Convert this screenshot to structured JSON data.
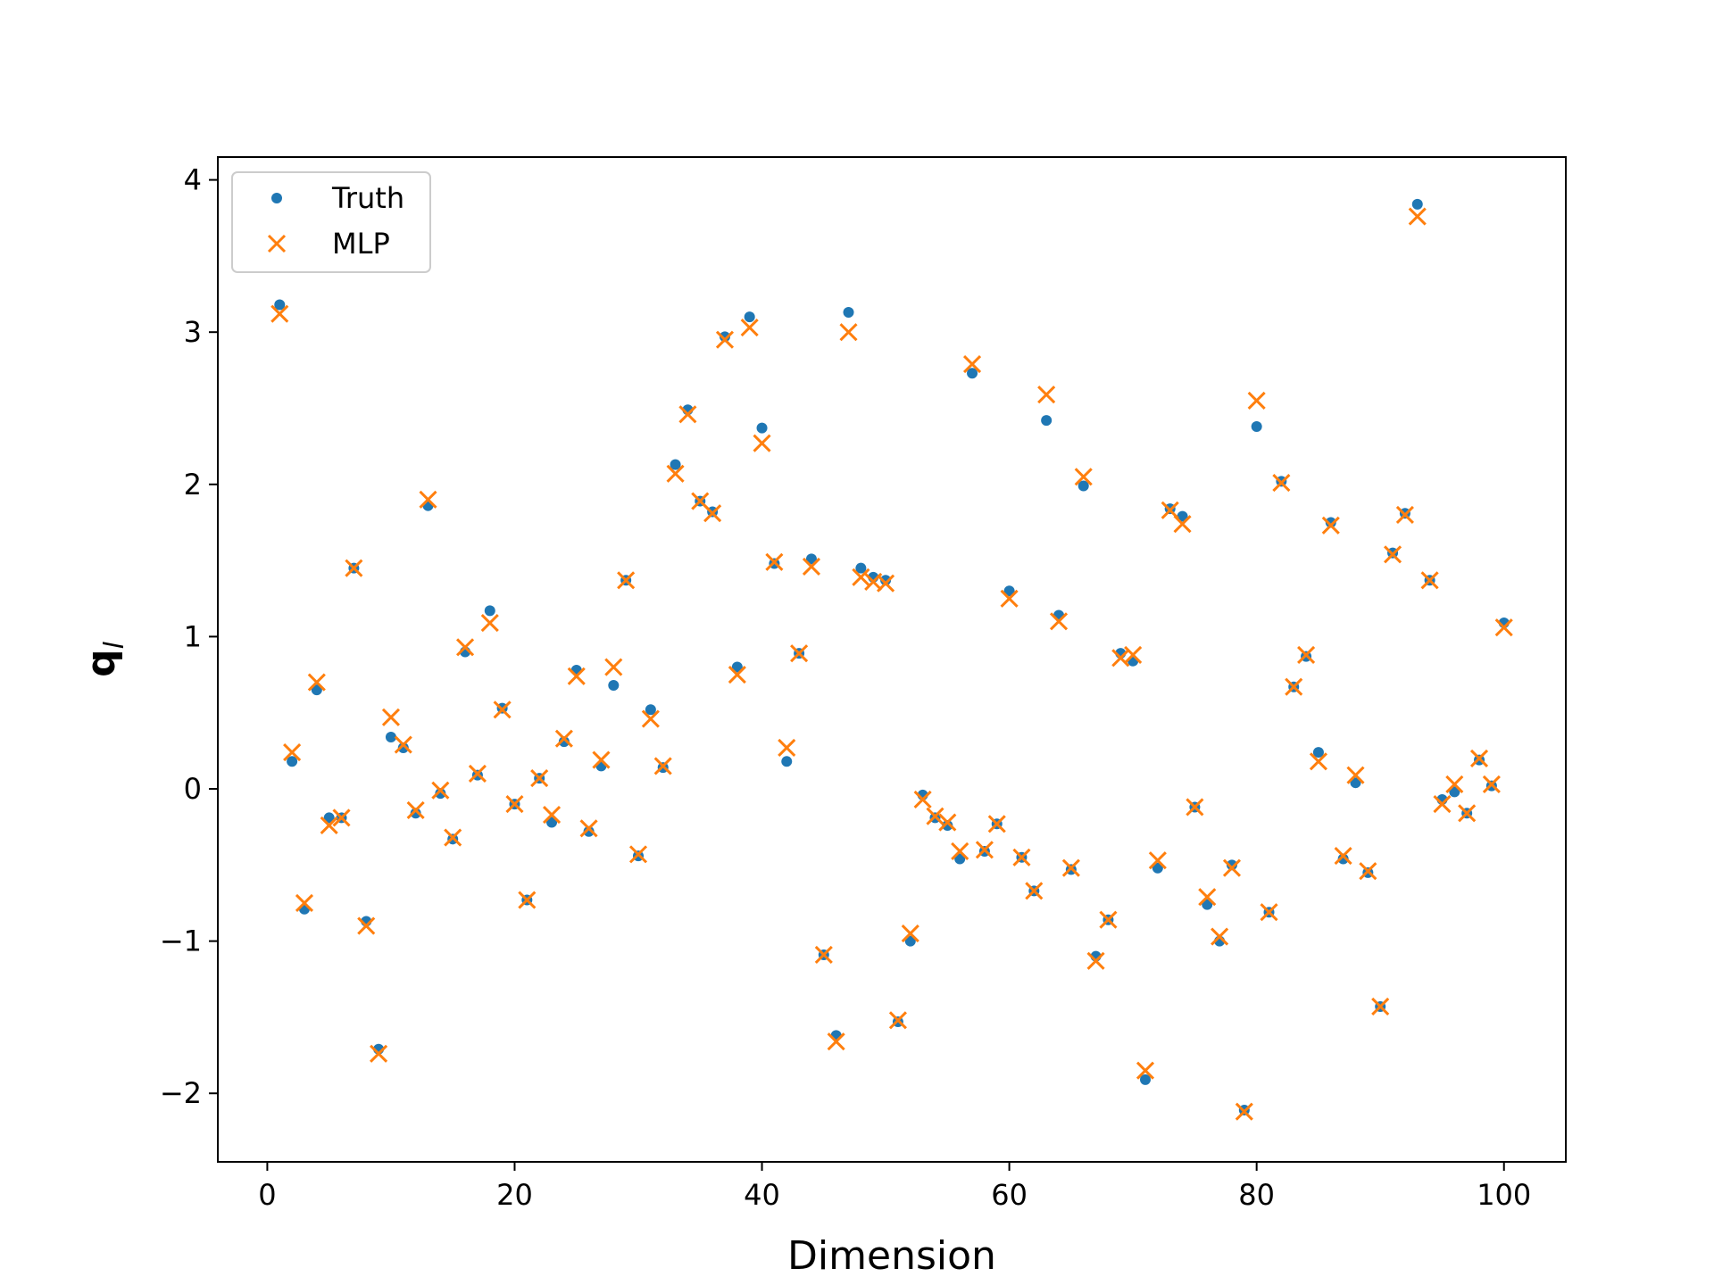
{
  "chart_data": {
    "type": "scatter",
    "title": "",
    "xlabel": "Dimension",
    "ylabel": "q",
    "ylabel_subscript": "l",
    "xlim": [
      -4,
      105
    ],
    "ylim": [
      -2.45,
      4.15
    ],
    "xticks": [
      0,
      20,
      40,
      60,
      80,
      100
    ],
    "yticks": [
      -2,
      -1,
      0,
      1,
      2,
      3,
      4
    ],
    "ytick_labels": [
      "−2",
      "−1",
      "0",
      "1",
      "2",
      "3",
      "4"
    ],
    "grid": false,
    "legend_position": "top-left",
    "x": [
      1,
      2,
      3,
      4,
      5,
      6,
      7,
      8,
      9,
      10,
      11,
      12,
      13,
      14,
      15,
      16,
      17,
      18,
      19,
      20,
      21,
      22,
      23,
      24,
      25,
      26,
      27,
      28,
      29,
      30,
      31,
      32,
      33,
      34,
      35,
      36,
      37,
      38,
      39,
      40,
      41,
      42,
      43,
      44,
      45,
      46,
      47,
      48,
      49,
      50,
      51,
      52,
      53,
      54,
      55,
      56,
      57,
      58,
      59,
      60,
      61,
      62,
      63,
      64,
      65,
      66,
      67,
      68,
      69,
      70,
      71,
      72,
      73,
      74,
      75,
      76,
      77,
      78,
      79,
      80,
      81,
      82,
      83,
      84,
      85,
      86,
      87,
      88,
      89,
      90,
      91,
      92,
      93,
      94,
      95,
      96,
      97,
      98,
      99,
      100
    ],
    "series": [
      {
        "name": "Truth",
        "marker": "dot",
        "color": "#1f77b4",
        "values": [
          3.18,
          0.18,
          -0.79,
          0.65,
          -0.19,
          -0.19,
          1.45,
          -0.87,
          -1.71,
          0.34,
          0.27,
          -0.16,
          1.86,
          -0.03,
          -0.33,
          0.9,
          0.09,
          1.17,
          0.53,
          -0.1,
          -0.73,
          0.07,
          -0.22,
          0.31,
          0.78,
          -0.28,
          0.15,
          0.68,
          1.37,
          -0.44,
          0.52,
          0.14,
          2.13,
          2.49,
          1.89,
          1.82,
          2.97,
          0.8,
          3.1,
          2.37,
          1.48,
          0.18,
          0.89,
          1.51,
          -1.09,
          -1.62,
          3.13,
          1.45,
          1.39,
          1.37,
          -1.53,
          -1.0,
          -0.04,
          -0.19,
          -0.24,
          -0.46,
          2.73,
          -0.41,
          -0.23,
          1.3,
          -0.45,
          -0.67,
          2.42,
          1.14,
          -0.53,
          1.99,
          -1.1,
          -0.86,
          0.89,
          0.84,
          -1.91,
          -0.52,
          1.84,
          1.79,
          -0.12,
          -0.76,
          -1.0,
          -0.5,
          -2.11,
          2.38,
          -0.81,
          2.02,
          0.67,
          0.87,
          0.24,
          1.75,
          -0.46,
          0.04,
          -0.55,
          -1.43,
          1.55,
          1.81,
          3.84,
          1.37,
          -0.07,
          -0.02,
          -0.16,
          0.19,
          0.02,
          1.09
        ]
      },
      {
        "name": "MLP",
        "marker": "x",
        "color": "#ff7f0e",
        "values": [
          3.12,
          0.24,
          -0.75,
          0.7,
          -0.24,
          -0.19,
          1.45,
          -0.9,
          -1.74,
          0.47,
          0.29,
          -0.14,
          1.9,
          -0.01,
          -0.32,
          0.93,
          0.1,
          1.09,
          0.52,
          -0.1,
          -0.73,
          0.07,
          -0.17,
          0.33,
          0.74,
          -0.26,
          0.19,
          0.8,
          1.37,
          -0.43,
          0.46,
          0.15,
          2.07,
          2.46,
          1.89,
          1.81,
          2.95,
          0.75,
          3.03,
          2.27,
          1.49,
          0.27,
          0.89,
          1.46,
          -1.09,
          -1.66,
          3.0,
          1.39,
          1.36,
          1.35,
          -1.52,
          -0.95,
          -0.07,
          -0.18,
          -0.22,
          -0.41,
          2.79,
          -0.4,
          -0.23,
          1.25,
          -0.45,
          -0.67,
          2.59,
          1.1,
          -0.52,
          2.05,
          -1.13,
          -0.86,
          0.86,
          0.88,
          -1.85,
          -0.47,
          1.83,
          1.74,
          -0.12,
          -0.71,
          -0.97,
          -0.52,
          -2.12,
          2.55,
          -0.81,
          2.01,
          0.67,
          0.88,
          0.18,
          1.73,
          -0.44,
          0.09,
          -0.54,
          -1.43,
          1.54,
          1.8,
          3.76,
          1.37,
          -0.1,
          0.03,
          -0.16,
          0.2,
          0.03,
          1.06
        ]
      }
    ]
  }
}
